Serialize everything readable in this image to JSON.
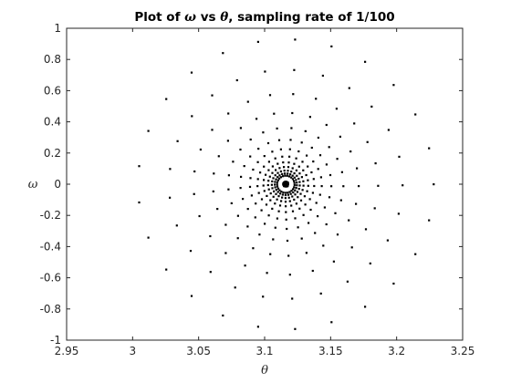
{
  "chart_data": {
    "type": "scatter",
    "title_prefix": "Plot of ",
    "title_sym_y": "ω",
    "title_vs": " vs ",
    "title_sym_x": "θ",
    "title_suffix": ", sampling rate of 1/100",
    "xlabel": "θ",
    "ylabel": "ω",
    "xlim": [
      2.95,
      3.25
    ],
    "ylim": [
      -1,
      1
    ],
    "xticks": [
      "2.95",
      "3",
      "3.05",
      "3.1",
      "3.15",
      "3.2",
      "3.25"
    ],
    "yticks": [
      "-1",
      "-0.8",
      "-0.6",
      "-0.4",
      "-0.2",
      "0",
      "0.2",
      "0.4",
      "0.6",
      "0.8",
      "1"
    ],
    "grid": false,
    "marker_color": "#000000",
    "attractor_center": [
      3.116,
      0.0
    ],
    "spiral": {
      "arms": 25,
      "points_per_arm": 13,
      "theta_amplitude_start": 0.112,
      "omega_amplitude_start": 0.93,
      "decay_per_step": 0.79,
      "phase_step_rad": 0.26
    }
  }
}
